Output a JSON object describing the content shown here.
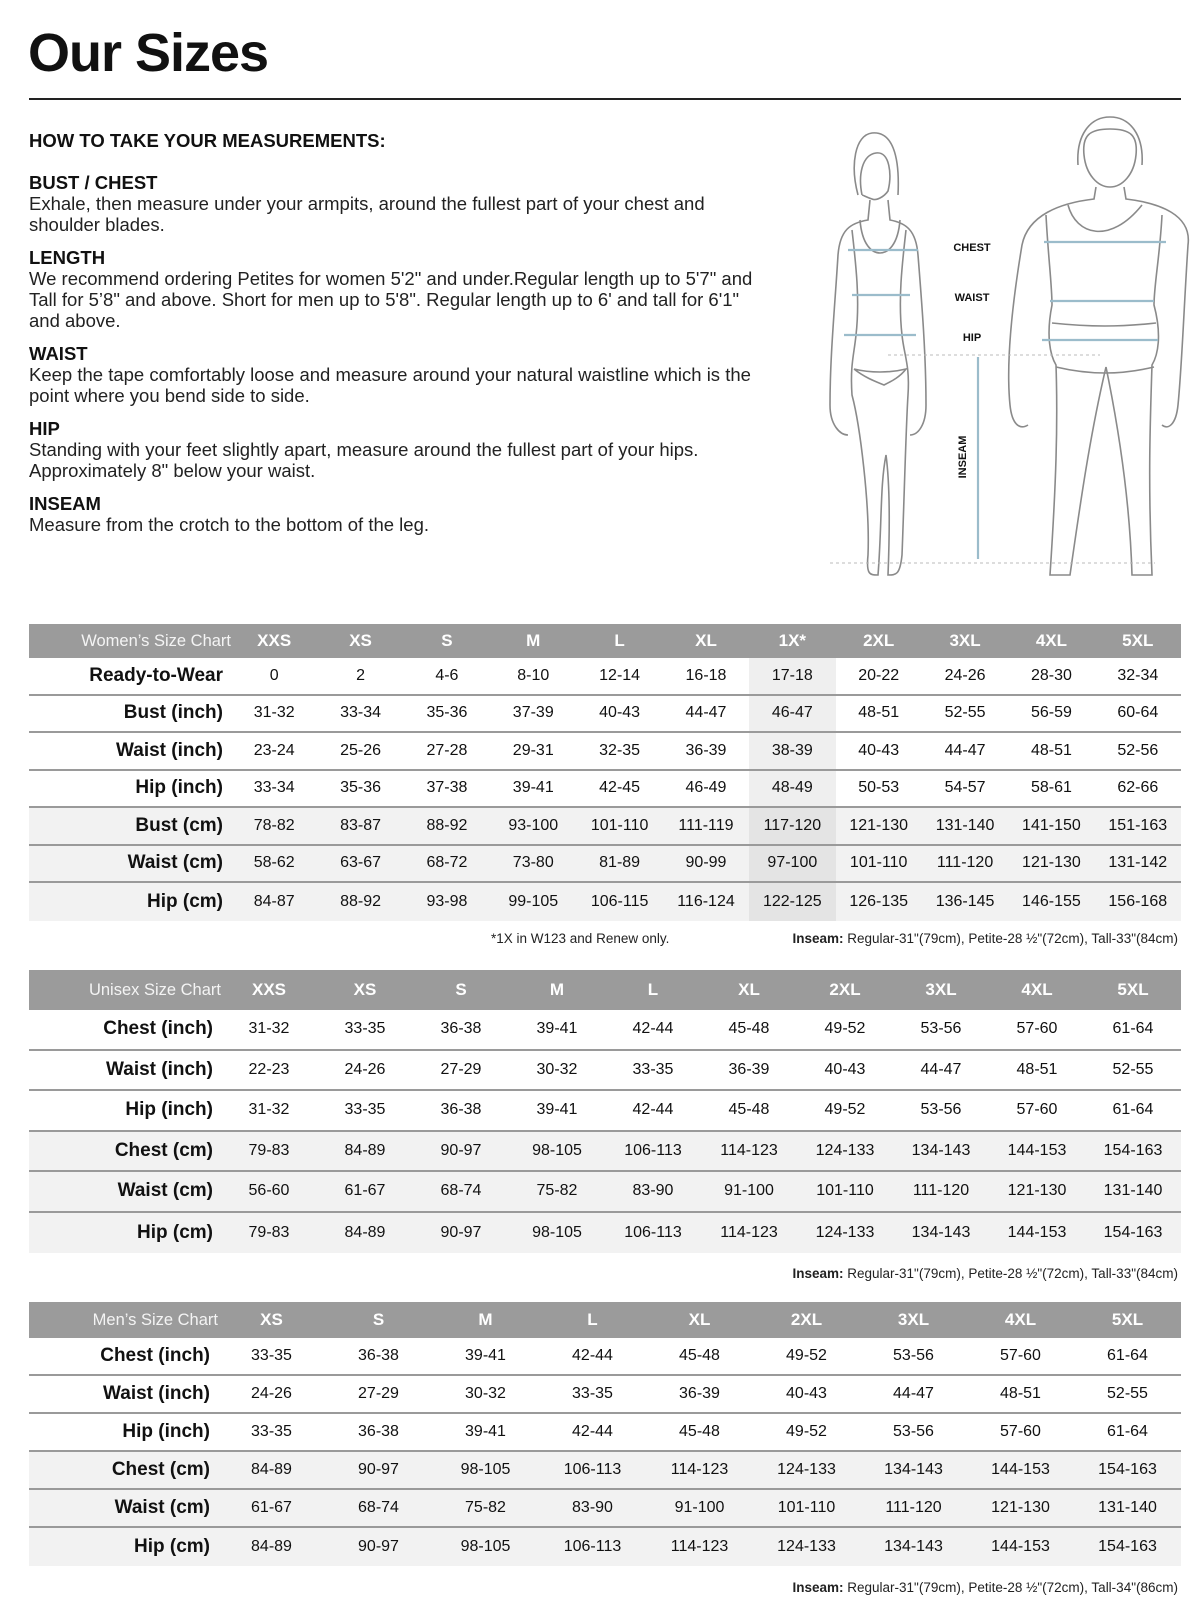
{
  "page_title": "Our Sizes",
  "guide": {
    "heading": "HOW TO TAKE YOUR MEASUREMENTS:",
    "sections": [
      {
        "title": "BUST / CHEST",
        "text": "Exhale, then measure under your armpits, around the fullest part of your chest and shoulder blades."
      },
      {
        "title": "LENGTH",
        "text": "We recommend ordering Petites for women 5'2\" and under.Regular length up to 5'7\" and Tall for 5’8\" and above. Short for men up to 5'8\". Regular length up to 6' and tall for 6'1\" and above."
      },
      {
        "title": "WAIST",
        "text": "Keep the tape comfortably loose and measure around your natural waistline which is the point where you bend side to side."
      },
      {
        "title": "HIP",
        "text": "Standing with your feet slightly apart, measure around the fullest part of your hips. Approximately 8\" below your waist."
      },
      {
        "title": "INSEAM",
        "text": "Measure from the crotch to the bottom of the leg."
      }
    ]
  },
  "figure": {
    "labels": {
      "chest": "CHEST",
      "waist": "WAIST",
      "hip": "HIP",
      "inseam": "INSEAM"
    },
    "measure_color": "#9bbccb"
  },
  "tables": [
    {
      "title": "Women’s Size Chart",
      "sizes": [
        "XXS",
        "XS",
        "S",
        "M",
        "L",
        "XL",
        "1X*",
        "2XL",
        "3XL",
        "4XL",
        "5XL"
      ],
      "highlight_col": 6,
      "rows": [
        {
          "label": "Ready-to-Wear",
          "values": [
            "0",
            "2",
            "4-6",
            "8-10",
            "12-14",
            "16-18",
            "17-18",
            "20-22",
            "24-26",
            "28-30",
            "32-34"
          ]
        },
        {
          "label": "Bust (inch)",
          "values": [
            "31-32",
            "33-34",
            "35-36",
            "37-39",
            "40-43",
            "44-47",
            "46-47",
            "48-51",
            "52-55",
            "56-59",
            "60-64"
          ]
        },
        {
          "label": "Waist (inch)",
          "values": [
            "23-24",
            "25-26",
            "27-28",
            "29-31",
            "32-35",
            "36-39",
            "38-39",
            "40-43",
            "44-47",
            "48-51",
            "52-56"
          ]
        },
        {
          "label": "Hip (inch)",
          "values": [
            "33-34",
            "35-36",
            "37-38",
            "39-41",
            "42-45",
            "46-49",
            "48-49",
            "50-53",
            "54-57",
            "58-61",
            "62-66"
          ]
        },
        {
          "label": "Bust (cm)",
          "values": [
            "78-82",
            "83-87",
            "88-92",
            "93-100",
            "101-110",
            "111-119",
            "117-120",
            "121-130",
            "131-140",
            "141-150",
            "151-163"
          ]
        },
        {
          "label": "Waist (cm)",
          "values": [
            "58-62",
            "63-67",
            "68-72",
            "73-80",
            "81-89",
            "90-99",
            "97-100",
            "101-110",
            "111-120",
            "121-130",
            "131-142"
          ]
        },
        {
          "label": "Hip (cm)",
          "values": [
            "84-87",
            "88-92",
            "93-98",
            "99-105",
            "106-115",
            "116-124",
            "122-125",
            "126-135",
            "136-145",
            "146-155",
            "156-168"
          ]
        }
      ],
      "footnote": "*1X in W123 and Renew only.",
      "inseam_label": "Inseam:",
      "inseam": "Regular-31\"(79cm), Petite-28 ½\"(72cm), Tall-33\"(84cm)"
    },
    {
      "title": "Unisex Size Chart",
      "sizes": [
        "XXS",
        "XS",
        "S",
        "M",
        "L",
        "XL",
        "2XL",
        "3XL",
        "4XL",
        "5XL"
      ],
      "rows": [
        {
          "label": "Chest (inch)",
          "values": [
            "31-32",
            "33-35",
            "36-38",
            "39-41",
            "42-44",
            "45-48",
            "49-52",
            "53-56",
            "57-60",
            "61-64"
          ]
        },
        {
          "label": "Waist (inch)",
          "values": [
            "22-23",
            "24-26",
            "27-29",
            "30-32",
            "33-35",
            "36-39",
            "40-43",
            "44-47",
            "48-51",
            "52-55"
          ]
        },
        {
          "label": "Hip (inch)",
          "values": [
            "31-32",
            "33-35",
            "36-38",
            "39-41",
            "42-44",
            "45-48",
            "49-52",
            "53-56",
            "57-60",
            "61-64"
          ]
        },
        {
          "label": "Chest (cm)",
          "values": [
            "79-83",
            "84-89",
            "90-97",
            "98-105",
            "106-113",
            "114-123",
            "124-133",
            "134-143",
            "144-153",
            "154-163"
          ]
        },
        {
          "label": "Waist (cm)",
          "values": [
            "56-60",
            "61-67",
            "68-74",
            "75-82",
            "83-90",
            "91-100",
            "101-110",
            "111-120",
            "121-130",
            "131-140"
          ]
        },
        {
          "label": "Hip (cm)",
          "values": [
            "79-83",
            "84-89",
            "90-97",
            "98-105",
            "106-113",
            "114-123",
            "124-133",
            "134-143",
            "144-153",
            "154-163"
          ]
        }
      ],
      "inseam_label": "Inseam:",
      "inseam": "Regular-31\"(79cm), Petite-28 ½\"(72cm), Tall-33\"(84cm)"
    },
    {
      "title": "Men’s Size Chart",
      "sizes": [
        "XS",
        "S",
        "M",
        "L",
        "XL",
        "2XL",
        "3XL",
        "4XL",
        "5XL"
      ],
      "rows": [
        {
          "label": "Chest (inch)",
          "values": [
            "33-35",
            "36-38",
            "39-41",
            "42-44",
            "45-48",
            "49-52",
            "53-56",
            "57-60",
            "61-64"
          ]
        },
        {
          "label": "Waist (inch)",
          "values": [
            "24-26",
            "27-29",
            "30-32",
            "33-35",
            "36-39",
            "40-43",
            "44-47",
            "48-51",
            "52-55"
          ]
        },
        {
          "label": "Hip (inch)",
          "values": [
            "33-35",
            "36-38",
            "39-41",
            "42-44",
            "45-48",
            "49-52",
            "53-56",
            "57-60",
            "61-64"
          ]
        },
        {
          "label": "Chest (cm)",
          "values": [
            "84-89",
            "90-97",
            "98-105",
            "106-113",
            "114-123",
            "124-133",
            "134-143",
            "144-153",
            "154-163"
          ]
        },
        {
          "label": "Waist (cm)",
          "values": [
            "61-67",
            "68-74",
            "75-82",
            "83-90",
            "91-100",
            "101-110",
            "111-120",
            "121-130",
            "131-140"
          ]
        },
        {
          "label": "Hip (cm)",
          "values": [
            "84-89",
            "90-97",
            "98-105",
            "106-113",
            "114-123",
            "124-133",
            "134-143",
            "144-153",
            "154-163"
          ]
        }
      ],
      "inseam_label": "Inseam:",
      "inseam": "Regular-31\"(79cm), Petite-28 ½\"(72cm), Tall-34\"(86cm)"
    }
  ]
}
